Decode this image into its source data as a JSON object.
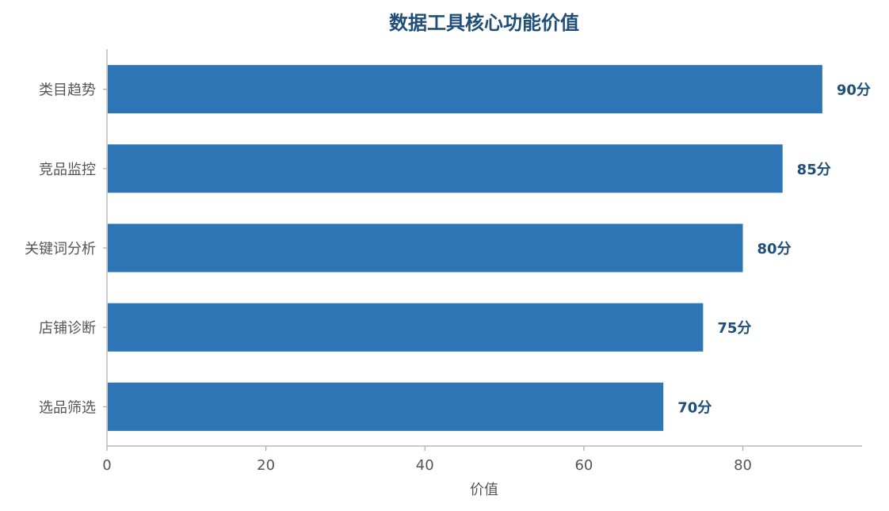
{
  "chart_data": {
    "type": "bar",
    "orientation": "horizontal",
    "title": "数据工具核心功能价值",
    "xlabel": "价值",
    "ylabel": "",
    "categories": [
      "类目趋势",
      "竞品监控",
      "关键词分析",
      "店铺诊断",
      "选品筛选"
    ],
    "values": [
      90,
      85,
      80,
      75,
      70
    ],
    "data_labels": [
      "90分",
      "85分",
      "80分",
      "75分",
      "70分"
    ],
    "xticks": [
      "0",
      "20",
      "40",
      "60",
      "80"
    ],
    "xlim": [
      0,
      95
    ],
    "grid": false,
    "legend": "none",
    "bar_color": "#2e75b6",
    "label_color": "#1f4e79"
  }
}
